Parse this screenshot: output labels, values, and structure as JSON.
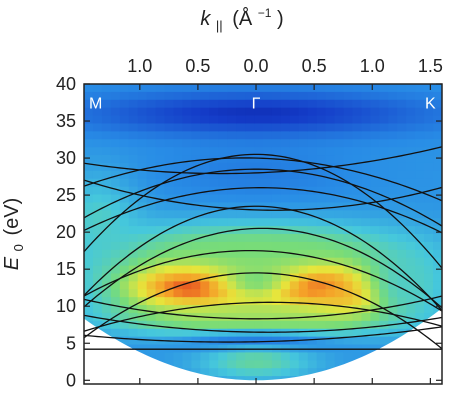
{
  "chart_data": {
    "type": "heatmap",
    "title": "",
    "xlabel": {
      "symbol": "k",
      "subscript": "||",
      "unit": "(Å",
      "unit_exponent": "−1",
      "unit_close": ")"
    },
    "ylabel": {
      "symbol": "E",
      "subscript": "0",
      "unit": "(eV)"
    },
    "x_tick_labels": [
      "1.0",
      "0.5",
      "0.0",
      "0.5",
      "1.0",
      "1.5"
    ],
    "x_tick_values": [
      -1.0,
      -0.5,
      0.0,
      0.5,
      1.0,
      1.5
    ],
    "xlim": [
      -1.48,
      1.6
    ],
    "y_ticks": [
      0,
      5,
      10,
      15,
      20,
      25,
      30,
      35,
      40
    ],
    "ylim": [
      -0.5,
      40
    ],
    "point_labels": [
      {
        "text": "M",
        "k": -1.38,
        "E": 37.5
      },
      {
        "text": "Γ",
        "k": 0.0,
        "E": 37.5
      },
      {
        "text": "K",
        "k": 1.5,
        "E": 37.5
      }
    ],
    "cutoff_parabola": {
      "E_at_gamma": 0,
      "curvature_eV_per_A2": 3.8
    },
    "intensity_regions": [
      {
        "k_center": -0.45,
        "E_center": 13.0,
        "k_width": 0.75,
        "E_width": 4.5,
        "level": 1.0
      },
      {
        "k_center": 0.45,
        "E_center": 13.0,
        "k_width": 0.7,
        "E_width": 4.5,
        "level": 1.0
      },
      {
        "k_center": 0.0,
        "E_center": 13.5,
        "k_width": 0.35,
        "E_width": 3.0,
        "level": 0.55
      },
      {
        "k_center": 0.8,
        "E_center": 11.0,
        "k_width": 0.35,
        "E_width": 2.5,
        "level": 0.85
      },
      {
        "k_center": 0.0,
        "E_center": 17.5,
        "k_width": 1.3,
        "E_width": 4.0,
        "level": 0.55
      },
      {
        "k_center": 0.0,
        "E_center": 8.5,
        "k_width": 1.2,
        "E_width": 2.5,
        "level": 0.6
      },
      {
        "k_center": 0.0,
        "E_center": 5.0,
        "k_width": 0.6,
        "E_width": 1.5,
        "level": 0.15
      },
      {
        "k_center": 0.0,
        "E_center": 2.5,
        "k_width": 0.5,
        "E_width": 2.5,
        "level": 0.5
      },
      {
        "k_center": -1.35,
        "E_center": 22.0,
        "k_width": 0.35,
        "E_width": 6.0,
        "level": 0.45
      },
      {
        "k_center": 1.3,
        "E_center": 13.0,
        "k_width": 0.35,
        "E_width": 5.0,
        "level": 0.45
      },
      {
        "k_center": 0.0,
        "E_center": 28.0,
        "k_width": 0.9,
        "E_width": 4.0,
        "level": 0.25
      },
      {
        "k_center": 0.0,
        "E_center": 36.0,
        "k_width": 1.5,
        "E_width": 3.0,
        "level": 0.1
      }
    ],
    "bands": [
      {
        "E_gamma": 4.2,
        "curvature": 0.0,
        "offset": 0.0
      },
      {
        "E_gamma": 5.2,
        "curvature": 0.6,
        "offset": 0.3
      },
      {
        "E_gamma": 6.5,
        "curvature": 0.9,
        "offset": -0.2
      },
      {
        "E_gamma": 8.3,
        "curvature": 1.2,
        "offset": 0.0
      },
      {
        "E_gamma": 10.5,
        "curvature": -1.5,
        "offset": 0.4
      },
      {
        "E_gamma": 14.5,
        "curvature": -4.0,
        "offset": 0.0
      },
      {
        "E_gamma": 17.5,
        "curvature": -3.0,
        "offset": -0.3
      },
      {
        "E_gamma": 20.5,
        "curvature": -4.5,
        "offset": 0.5
      },
      {
        "E_gamma": 23.5,
        "curvature": -5.5,
        "offset": 0.0
      },
      {
        "E_gamma": 23.0,
        "curvature": 1.5,
        "offset": -0.5
      },
      {
        "E_gamma": 26.0,
        "curvature": -2.5,
        "offset": 0.2
      },
      {
        "E_gamma": 28.5,
        "curvature": -3.0,
        "offset": 0.0
      },
      {
        "E_gamma": 30.0,
        "curvature": -2.0,
        "offset": -0.4
      },
      {
        "E_gamma": 28.0,
        "curvature": 1.0,
        "offset": 0.6
      },
      {
        "E_gamma": 30.5,
        "curvature": -6.0,
        "offset": 0.0
      }
    ]
  }
}
